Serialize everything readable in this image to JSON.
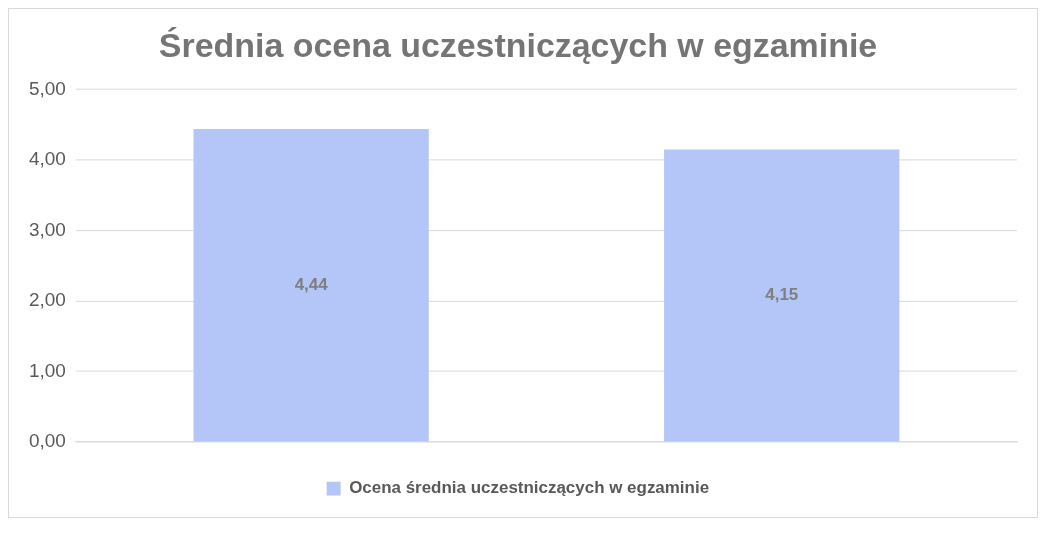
{
  "chart_data": {
    "type": "bar",
    "title": "Średnia ocena uczestniczących w egzaminie",
    "categories": [
      null,
      null
    ],
    "series": [
      {
        "name": "Ocena średnia uczestniczących w egzaminie",
        "color": "#b4c6f7",
        "values": [
          4.44,
          4.15
        ],
        "value_labels": [
          "4,44",
          "4,15"
        ]
      }
    ],
    "ylim": [
      0,
      5
    ],
    "yticks": [
      {
        "value": 0,
        "label": "0,00"
      },
      {
        "value": 1,
        "label": "1,00"
      },
      {
        "value": 2,
        "label": "2,00"
      },
      {
        "value": 3,
        "label": "3,00"
      },
      {
        "value": 4,
        "label": "4,00"
      },
      {
        "value": 5,
        "label": "5,00"
      }
    ],
    "grid": "y",
    "legend": "bottom"
  }
}
